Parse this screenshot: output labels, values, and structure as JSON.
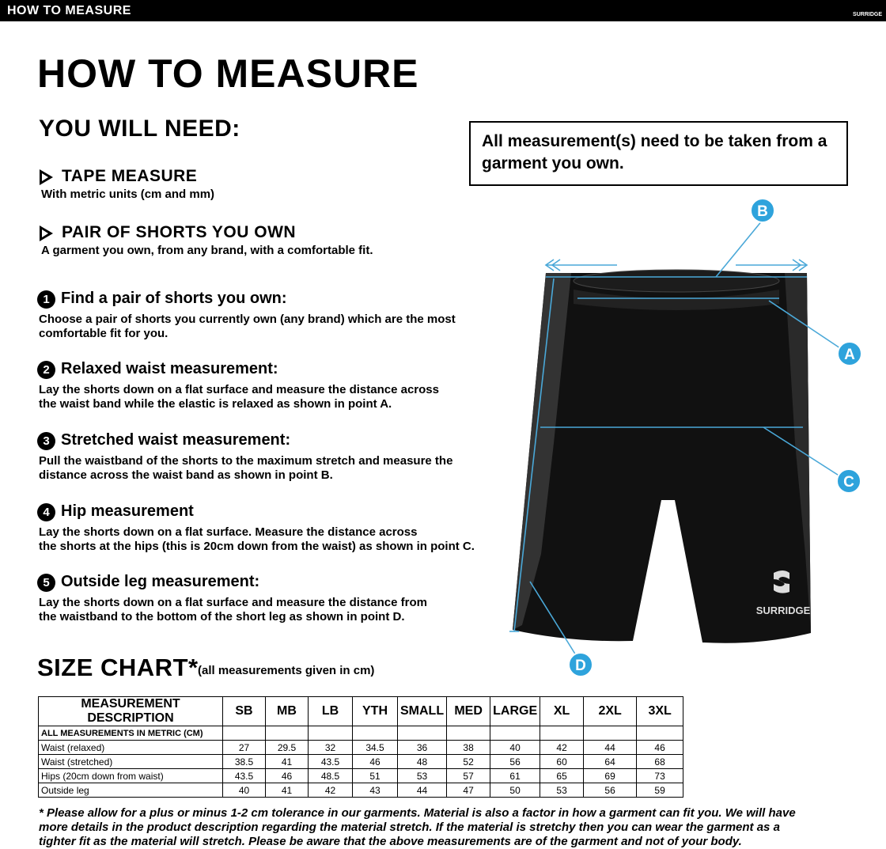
{
  "header": {
    "title": "HOW TO MEASURE",
    "brand": "SURRIDGE"
  },
  "title": "HOW TO MEASURE",
  "need": {
    "title": "YOU WILL NEED:",
    "items": [
      {
        "title": "TAPE MEASURE",
        "text": "With metric units (cm and mm)"
      },
      {
        "title": "PAIR OF SHORTS YOU OWN",
        "text": "A garment you own, from any brand, with a comfortable fit."
      }
    ]
  },
  "note": "All measurement(s) need to be taken from a garment you own.",
  "steps": [
    {
      "number": 1,
      "title": "Find a pair of shorts you own:",
      "lines": [
        "Choose a pair of shorts you currently own (any brand) which are the most",
        "comfortable fit for you."
      ]
    },
    {
      "number": 2,
      "title": "Relaxed waist measurement:",
      "lines": [
        "Lay the shorts down on a flat surface and measure the distance across",
        "the waist band while the elastic is relaxed as shown in point A."
      ]
    },
    {
      "number": 3,
      "title": "Stretched waist measurement:",
      "lines": [
        "Pull the waistband of the shorts to the maximum stretch and measure the",
        "distance across the waist band as shown in point B."
      ]
    },
    {
      "number": 4,
      "title": "Hip measurement",
      "lines": [
        "Lay the shorts down on a flat surface. Measure the distance across",
        "the shorts at the hips (this is 20cm down from the waist)  as shown in point C."
      ]
    },
    {
      "number": 5,
      "title": "Outside leg measurement:",
      "lines": [
        "Lay the shorts down on a flat surface and measure the distance from",
        "the waistband to the bottom of the short leg as shown in point D."
      ]
    }
  ],
  "diagram": {
    "points": [
      "A",
      "B",
      "C",
      "D"
    ],
    "brand": "SURRIDGE"
  },
  "size_chart": {
    "title": "SIZE CHART",
    "asterisk": "*",
    "subtitle": "(all measurements given in cm)"
  },
  "table": {
    "headers": [
      "MEASUREMENT DESCRIPTION",
      "SB",
      "MB",
      "LB",
      "YTH",
      "SMALL",
      "MED",
      "LARGE",
      "XL",
      "2XL",
      "3XL"
    ],
    "section": "ALL MEASUREMENTS IN METRIC (CM)",
    "rows": [
      {
        "label": "Waist (relaxed)",
        "values": [
          27,
          29.5,
          32,
          34.5,
          36,
          38,
          40,
          42,
          44,
          46
        ]
      },
      {
        "label": "Waist (stretched)",
        "values": [
          38.5,
          41,
          43.5,
          46,
          48,
          52,
          56,
          60,
          64,
          68
        ]
      },
      {
        "label": "Hips (20cm down from waist)",
        "values": [
          43.5,
          46,
          48.5,
          51,
          53,
          57,
          61,
          65,
          69,
          73
        ]
      },
      {
        "label": "Outside leg",
        "values": [
          40,
          41,
          42,
          43,
          44,
          47,
          50,
          53,
          56,
          59
        ]
      }
    ]
  },
  "footnote": [
    "* Please allow for a plus or minus 1-2 cm tolerance in our garments. Material is also a factor in how a garment can fit you. We will have",
    "more details in the product description regarding the material stretch.  If the material is stretchy then you can wear the garment as a",
    "tighter fit as the material will stretch.  Please be aware that the above measurements are of the garment and not of your body."
  ]
}
